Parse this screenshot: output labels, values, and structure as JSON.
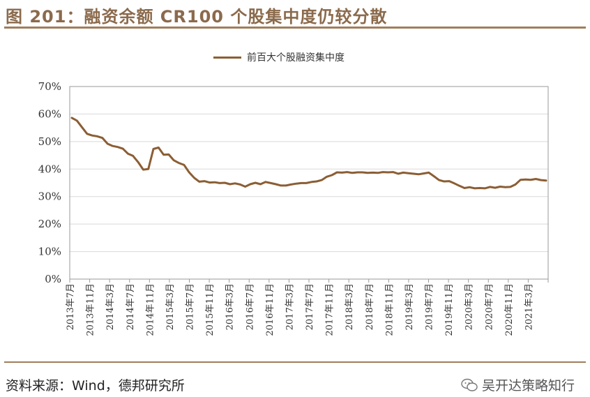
{
  "header": {
    "title": "图 201：融资余额 CR100 个股集中度仍较分散"
  },
  "footer": {
    "source": "资料来源：Wind，德邦研究所",
    "watermark": "吴开达策略知行"
  },
  "colors": {
    "line": "#8b5e34",
    "title": "#8b6a4c",
    "rule": "#a07d5c"
  },
  "chart_data": {
    "type": "line",
    "legend": "top-center",
    "series": [
      {
        "name": "前百大个股融资集中度",
        "values": [
          58.6,
          57.6,
          55.2,
          52.8,
          52.2,
          51.9,
          51.3,
          49.2,
          48.4,
          48.0,
          47.4,
          45.6,
          44.8,
          42.5,
          39.8,
          40.0,
          47.3,
          47.8,
          45.2,
          45.3,
          43.2,
          42.2,
          41.5,
          38.8,
          36.8,
          35.4,
          35.6,
          35.1,
          35.2,
          34.9,
          35.0,
          34.5,
          34.8,
          34.4,
          33.6,
          34.5,
          35.0,
          34.5,
          35.3,
          34.9,
          34.5,
          34.0,
          34.0,
          34.4,
          34.7,
          34.9,
          34.9,
          35.3,
          35.5,
          36.0,
          37.2,
          37.8,
          38.8,
          38.7,
          38.9,
          38.6,
          38.8,
          38.8,
          38.6,
          38.7,
          38.6,
          38.9,
          38.8,
          38.9,
          38.3,
          38.7,
          38.5,
          38.3,
          38.1,
          38.4,
          38.7,
          37.4,
          36.0,
          35.5,
          35.6,
          34.8,
          33.9,
          33.1,
          33.4,
          33.0,
          33.1,
          33.0,
          33.5,
          33.2,
          33.6,
          33.4,
          33.5,
          34.4,
          36.1,
          36.2,
          36.1,
          36.4,
          36.0,
          35.8
        ]
      }
    ],
    "x_ticks": [
      "2013年7月",
      "2013年11月",
      "2014年3月",
      "2014年7月",
      "2014年11月",
      "2015年3月",
      "2015年7月",
      "2015年11月",
      "2016年3月",
      "2016年7月",
      "2016年11月",
      "2017年3月",
      "2017年7月",
      "2017年11月",
      "2018年3月",
      "2018年7月",
      "2018年11月",
      "2019年3月",
      "2019年7月",
      "2019年11月",
      "2020年3月",
      "2020年7月",
      "2020年11月",
      "2021年3月"
    ],
    "y_ticks": [
      "0%",
      "10%",
      "20%",
      "30%",
      "40%",
      "50%",
      "60%",
      "70%"
    ],
    "ylim": [
      0,
      70
    ],
    "grid": true
  }
}
